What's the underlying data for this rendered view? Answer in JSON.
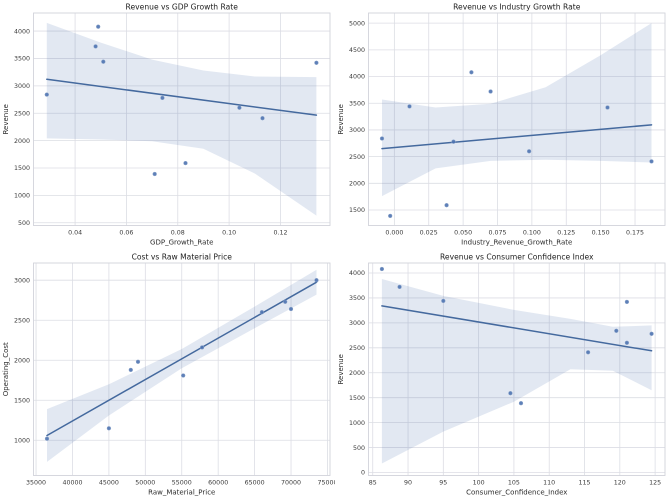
{
  "figure": {
    "background": "#ffffff",
    "rows": 2,
    "cols": 2
  },
  "palette": {
    "accent": "#4c72b0",
    "point_fill": "#4c72b0",
    "point_edge": "#8fa7cc",
    "line": "#44699e",
    "ci_fill": "#4c72b0",
    "ci_opacity": 0.16,
    "grid": "#dcdde4",
    "spine": "#d2d3db",
    "tick_text": "#3a3a3a",
    "label_text": "#2c2c2c",
    "title_text": "#222222"
  },
  "chart_data": [
    {
      "type": "scatter",
      "title": "Revenue vs GDP Growth Rate",
      "xlabel": "GDP_Growth_Rate",
      "ylabel": "Revenue",
      "grid": true,
      "legend": false,
      "xlim": [
        0.0238,
        0.1393
      ],
      "ylim": [
        450,
        4330
      ],
      "xticks": [
        0.04,
        0.06,
        0.08,
        0.1,
        0.12
      ],
      "xtick_labels": [
        "0.04",
        "0.06",
        "0.08",
        "0.10",
        "0.12"
      ],
      "yticks": [
        500,
        1000,
        1500,
        2000,
        2500,
        3000,
        3500,
        4000
      ],
      "ytick_labels": [
        "500",
        "1000",
        "1500",
        "2000",
        "2500",
        "3000",
        "3500",
        "4000"
      ],
      "points": [
        [
          0.029,
          2840
        ],
        [
          0.049,
          4080
        ],
        [
          0.048,
          3720
        ],
        [
          0.051,
          3440
        ],
        [
          0.071,
          1390
        ],
        [
          0.074,
          2780
        ],
        [
          0.083,
          1590
        ],
        [
          0.104,
          2600
        ],
        [
          0.113,
          2410
        ],
        [
          0.134,
          3420
        ]
      ],
      "regression": {
        "x": [
          0.029,
          0.134
        ],
        "y": [
          3120,
          2465
        ]
      },
      "ci_band": {
        "x": [
          0.029,
          0.05,
          0.07,
          0.09,
          0.11,
          0.134
        ],
        "upper": [
          4150,
          3790,
          3480,
          3280,
          3170,
          3160
        ],
        "lower": [
          2040,
          2020,
          1990,
          1850,
          1400,
          630
        ]
      }
    },
    {
      "type": "scatter",
      "title": "Revenue vs Industry Growth Rate",
      "xlabel": "Industry_Revenue_Growth_Rate",
      "ylabel": "Revenue",
      "grid": true,
      "legend": false,
      "xlim": [
        -0.0188,
        0.1968
      ],
      "ylim": [
        1210,
        5190
      ],
      "xticks": [
        0.0,
        0.025,
        0.05,
        0.075,
        0.1,
        0.125,
        0.15,
        0.175
      ],
      "xtick_labels": [
        "0.000",
        "0.025",
        "0.050",
        "0.075",
        "0.100",
        "0.125",
        "0.150",
        "0.175"
      ],
      "yticks": [
        1500,
        2000,
        2500,
        3000,
        3500,
        4000,
        4500,
        5000
      ],
      "ytick_labels": [
        "1500",
        "2000",
        "2500",
        "3000",
        "3500",
        "4000",
        "4500",
        "5000"
      ],
      "points": [
        [
          -0.009,
          2840
        ],
        [
          -0.003,
          1390
        ],
        [
          0.011,
          3440
        ],
        [
          0.038,
          1590
        ],
        [
          0.043,
          2780
        ],
        [
          0.056,
          4080
        ],
        [
          0.07,
          3720
        ],
        [
          0.098,
          2600
        ],
        [
          0.155,
          3420
        ],
        [
          0.187,
          2410
        ]
      ],
      "regression": {
        "x": [
          -0.009,
          0.187
        ],
        "y": [
          2650,
          3095
        ]
      },
      "ci_band": {
        "x": [
          -0.009,
          0.03,
          0.07,
          0.11,
          0.15,
          0.187
        ],
        "upper": [
          3570,
          3420,
          3490,
          3800,
          4400,
          5000
        ],
        "lower": [
          1760,
          2280,
          2420,
          2440,
          2420,
          2390
        ]
      }
    },
    {
      "type": "scatter",
      "title": "Cost vs Raw Material Price",
      "xlabel": "Raw_Material_Price",
      "ylabel": "Operating_Cost",
      "grid": true,
      "legend": false,
      "xlim": [
        34650,
        75350
      ],
      "ylim": [
        560,
        3215
      ],
      "xticks": [
        35000,
        40000,
        45000,
        50000,
        55000,
        60000,
        65000,
        70000,
        75000
      ],
      "xtick_labels": [
        "35000",
        "40000",
        "45000",
        "50000",
        "55000",
        "60000",
        "65000",
        "70000",
        "75000"
      ],
      "yticks": [
        1000,
        1500,
        2000,
        2500,
        3000
      ],
      "ytick_labels": [
        "1000",
        "1500",
        "2000",
        "2500",
        "3000"
      ],
      "points": [
        [
          36500,
          1020
        ],
        [
          45000,
          1150
        ],
        [
          48000,
          1880
        ],
        [
          49000,
          1980
        ],
        [
          55200,
          1810
        ],
        [
          57800,
          2160
        ],
        [
          66000,
          2600
        ],
        [
          69200,
          2730
        ],
        [
          70000,
          2640
        ],
        [
          73500,
          3000
        ]
      ],
      "regression": {
        "x": [
          36500,
          73500
        ],
        "y": [
          1060,
          2975
        ]
      },
      "ci_band": {
        "x": [
          36500,
          45000,
          55000,
          65000,
          73500
        ],
        "upper": [
          1390,
          1700,
          2140,
          2670,
          3130
        ],
        "lower": [
          730,
          1310,
          1900,
          2400,
          2820
        ]
      }
    },
    {
      "type": "scatter",
      "title": "Revenue vs Consumer Confidence Index",
      "xlabel": "Consumer_Confidence_Index",
      "ylabel": "Revenue",
      "grid": true,
      "legend": false,
      "xlim": [
        84.4,
        126.4
      ],
      "ylim": [
        -60,
        4200
      ],
      "xticks": [
        85,
        90,
        95,
        100,
        105,
        110,
        115,
        120,
        125
      ],
      "xtick_labels": [
        "85",
        "90",
        "95",
        "100",
        "105",
        "110",
        "115",
        "120",
        "125"
      ],
      "yticks": [
        0,
        500,
        1000,
        1500,
        2000,
        2500,
        3000,
        3500,
        4000
      ],
      "ytick_labels": [
        "0",
        "500",
        "1000",
        "1500",
        "2000",
        "2500",
        "3000",
        "3500",
        "4000"
      ],
      "points": [
        [
          86.3,
          4080
        ],
        [
          88.8,
          3720
        ],
        [
          95,
          3440
        ],
        [
          104.5,
          1590
        ],
        [
          106,
          1390
        ],
        [
          115.5,
          2410
        ],
        [
          119.5,
          2840
        ],
        [
          121,
          3420
        ],
        [
          121,
          2600
        ],
        [
          124.5,
          2780
        ]
      ],
      "regression": {
        "x": [
          86.3,
          124.5
        ],
        "y": [
          3340,
          2440
        ]
      },
      "ci_band": {
        "x": [
          86.3,
          95,
          105,
          113,
          119,
          124.5
        ],
        "upper": [
          3880,
          3540,
          3260,
          3080,
          2920,
          2950
        ],
        "lower": [
          180,
          820,
          1420,
          2070,
          2040,
          1650
        ]
      }
    }
  ]
}
